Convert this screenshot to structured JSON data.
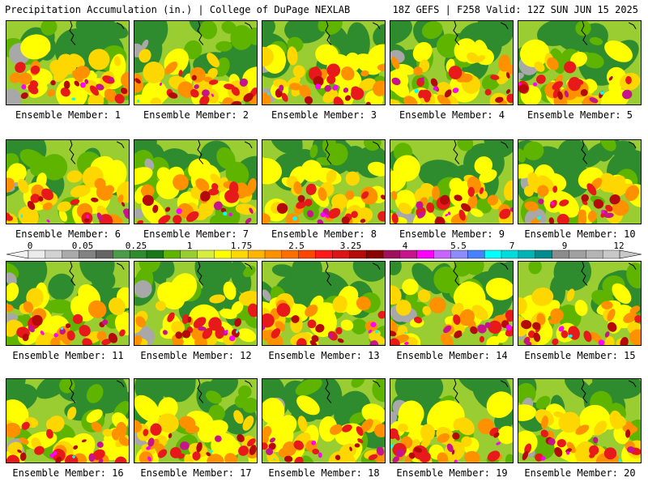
{
  "header": {
    "title_left": "Precipitation Accumulation (in.) | College of DuPage NEXLAB",
    "title_right": "18Z GEFS | F258 Valid: 12Z SUN JUN 15 2025"
  },
  "panels": [
    {
      "label": "Ensemble Member: 1"
    },
    {
      "label": "Ensemble Member: 2"
    },
    {
      "label": "Ensemble Member: 3"
    },
    {
      "label": "Ensemble Member: 4"
    },
    {
      "label": "Ensemble Member: 5"
    },
    {
      "label": "Ensemble Member: 6"
    },
    {
      "label": "Ensemble Member: 7"
    },
    {
      "label": "Ensemble Member: 8"
    },
    {
      "label": "Ensemble Member: 9"
    },
    {
      "label": "Ensemble Member: 10"
    },
    {
      "label": "Ensemble Member: 11"
    },
    {
      "label": "Ensemble Member: 12"
    },
    {
      "label": "Ensemble Member: 13"
    },
    {
      "label": "Ensemble Member: 14"
    },
    {
      "label": "Ensemble Member: 15"
    },
    {
      "label": "Ensemble Member: 16"
    },
    {
      "label": "Ensemble Member: 17"
    },
    {
      "label": "Ensemble Member: 18"
    },
    {
      "label": "Ensemble Member: 19"
    },
    {
      "label": "Ensemble Member: 20"
    }
  ],
  "colorbar": {
    "tick_labels": [
      "0",
      "0.05",
      "0.25",
      "1",
      "1.75",
      "2.5",
      "3.25",
      "4",
      "5.5",
      "7",
      "9",
      "12"
    ],
    "colors": [
      "#ebebeb",
      "#d2d2d2",
      "#aaaaaa",
      "#828282",
      "#646464",
      "#4b9b4b",
      "#2e8b2e",
      "#197819",
      "#5fb400",
      "#9acd32",
      "#d7ee3f",
      "#ffff00",
      "#ffd700",
      "#ffb400",
      "#ff9100",
      "#ff6e00",
      "#ff4500",
      "#ff1a1a",
      "#dc1414",
      "#b40a0a",
      "#8b0000",
      "#a0105a",
      "#c8148c",
      "#ff00ff",
      "#c864ff",
      "#8c8cff",
      "#4682ff",
      "#00ffff",
      "#00dcdc",
      "#00b4b4",
      "#008c8c",
      "#8c8c8c",
      "#a0a0a0",
      "#b4b4b4",
      "#c8c8c8"
    ]
  },
  "map_palette": {
    "gray": "#a8a8a8",
    "dark_green": "#2e8b2e",
    "green": "#5fb400",
    "light_green": "#9acd32",
    "yellow": "#ffff00",
    "gold": "#ffd700",
    "orange": "#ff9100",
    "red": "#e8191a",
    "dark_red": "#b40a0a",
    "maroon": "#8b0000",
    "magenta": "#c8148c",
    "purple": "#ff00ff",
    "cyan": "#00ffff"
  }
}
